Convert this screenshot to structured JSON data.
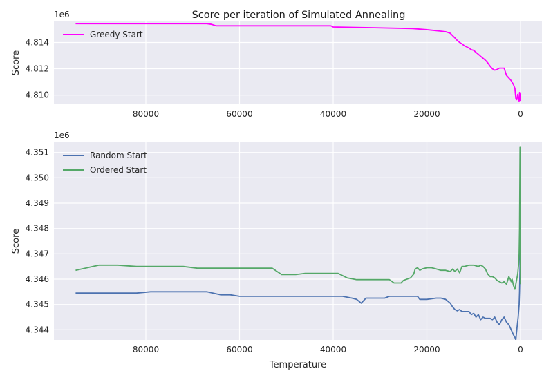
{
  "figure_title": "Score per iteration of Simulated Annealing",
  "colors": {
    "axes_bg": "#eaeaf2",
    "grid": "#ffffff",
    "greedy": "#ff00ff",
    "random": "#4c72b0",
    "ordered": "#55a868"
  },
  "chart_data": [
    {
      "type": "line",
      "x_inverted": true,
      "xlim": [
        0,
        100000
      ],
      "ylim": [
        4.8093,
        4.8156
      ],
      "y_offset_label": "1e6",
      "y_ticks": [
        4.81,
        4.812,
        4.814
      ],
      "y_tick_labels": [
        "4.810",
        "4.812",
        "4.814"
      ],
      "x_ticks": [
        80000,
        60000,
        40000,
        20000,
        0
      ],
      "x_tick_labels": [
        "80000",
        "60000",
        "40000",
        "20000",
        "0"
      ],
      "xlabel": "",
      "ylabel": "Score",
      "grid": true,
      "legend_loc": "upper left",
      "series": [
        {
          "name": "Greedy Start",
          "color_key": "greedy",
          "x": [
            95000,
            67000,
            66000,
            65000,
            40500,
            40000,
            32000,
            23000,
            20200,
            18000,
            16000,
            15000,
            14500,
            14000,
            13500,
            13000,
            12500,
            12000,
            11000,
            10500,
            10000,
            9500,
            9000,
            8500,
            8000,
            7500,
            7000,
            6500,
            6000,
            5500,
            5000,
            4500,
            4000,
            3500,
            3000,
            2500,
            2000,
            1500,
            1200,
            1000,
            800,
            600,
            400,
            300,
            200,
            100,
            50,
            0
          ],
          "y": [
            4.81543,
            4.81543,
            4.81538,
            4.81527,
            4.81527,
            4.81518,
            4.81513,
            4.81506,
            4.81498,
            4.8149,
            4.81482,
            4.8147,
            4.81452,
            4.81435,
            4.81415,
            4.814,
            4.8139,
            4.81375,
            4.81358,
            4.81345,
            4.8134,
            4.81325,
            4.8131,
            4.81295,
            4.8128,
            4.81265,
            4.81245,
            4.8122,
            4.812,
            4.8119,
            4.81195,
            4.81205,
            4.81205,
            4.81205,
            4.8115,
            4.8113,
            4.8111,
            4.8108,
            4.8105,
            4.80975,
            4.80965,
            4.81005,
            4.8096,
            4.80955,
            4.8102,
            4.81005,
            4.8096,
            4.80965
          ]
        }
      ]
    },
    {
      "type": "line",
      "x_inverted": true,
      "xlim": [
        0,
        100000
      ],
      "ylim": [
        4.3436,
        4.3514
      ],
      "y_offset_label": "1e6",
      "y_ticks": [
        4.344,
        4.345,
        4.346,
        4.347,
        4.348,
        4.349,
        4.35,
        4.351
      ],
      "y_tick_labels": [
        "4.344",
        "4.345",
        "4.346",
        "4.347",
        "4.348",
        "4.349",
        "4.350",
        "4.351"
      ],
      "x_ticks": [
        80000,
        60000,
        40000,
        20000,
        0
      ],
      "x_tick_labels": [
        "80000",
        "60000",
        "40000",
        "20000",
        "0"
      ],
      "xlabel": "Temperature",
      "ylabel": "Score",
      "grid": true,
      "legend_loc": "upper left",
      "series": [
        {
          "name": "Random Start",
          "color_key": "random",
          "x": [
            95000,
            82000,
            79000,
            67000,
            64000,
            62000,
            60000,
            38000,
            36000,
            35000,
            34000,
            33000,
            29000,
            28000,
            22000,
            21500,
            20000,
            18000,
            17000,
            16000,
            15000,
            14500,
            14000,
            13500,
            13000,
            12500,
            12000,
            11000,
            10500,
            10000,
            9500,
            9000,
            8500,
            8000,
            7500,
            7000,
            6500,
            6000,
            5500,
            5000,
            4500,
            4000,
            3500,
            3000,
            2500,
            2000,
            1500,
            1200,
            1000,
            800,
            500,
            300,
            200,
            100,
            50,
            0
          ],
          "y": [
            4.34545,
            4.34545,
            4.3455,
            4.3455,
            4.34538,
            4.34538,
            4.34532,
            4.34532,
            4.34525,
            4.3452,
            4.34505,
            4.34525,
            4.34525,
            4.34532,
            4.34532,
            4.3452,
            4.3452,
            4.34525,
            4.34525,
            4.3452,
            4.34505,
            4.3449,
            4.3448,
            4.34475,
            4.3448,
            4.34472,
            4.34472,
            4.34472,
            4.3446,
            4.34465,
            4.3445,
            4.3446,
            4.3444,
            4.3445,
            4.34445,
            4.34445,
            4.34445,
            4.3444,
            4.3445,
            4.3443,
            4.3442,
            4.3444,
            4.3445,
            4.3443,
            4.3442,
            4.344,
            4.3438,
            4.3437,
            4.3436,
            4.344,
            4.3445,
            4.345,
            4.3455,
            4.3465,
            4.349,
            4.347
          ]
        },
        {
          "name": "Ordered Start",
          "color_key": "ordered",
          "x": [
            95000,
            90000,
            86000,
            82000,
            72000,
            69000,
            53000,
            51000,
            48000,
            46000,
            39000,
            37000,
            35000,
            28000,
            27000,
            25500,
            25000,
            23500,
            22800,
            22500,
            22000,
            21500,
            21000,
            20000,
            19000,
            18000,
            17000,
            16000,
            15000,
            14500,
            14000,
            13500,
            13000,
            12500,
            12000,
            11000,
            10000,
            9000,
            8500,
            8000,
            7500,
            7000,
            6500,
            6000,
            5500,
            5000,
            4500,
            4000,
            3500,
            3000,
            2500,
            2200,
            2000,
            1800,
            1500,
            1200,
            1000,
            800,
            600,
            400,
            300,
            200,
            100,
            50,
            0
          ],
          "y": [
            4.34635,
            4.34655,
            4.34655,
            4.3465,
            4.3465,
            4.34643,
            4.34643,
            4.34618,
            4.34618,
            4.34623,
            4.34623,
            4.34605,
            4.34598,
            4.34598,
            4.34585,
            4.34585,
            4.34595,
            4.34605,
            4.3462,
            4.3464,
            4.34645,
            4.34635,
            4.3464,
            4.34645,
            4.34645,
            4.3464,
            4.34635,
            4.34635,
            4.3463,
            4.3464,
            4.3463,
            4.3464,
            4.34625,
            4.3465,
            4.3465,
            4.34655,
            4.34655,
            4.3465,
            4.34655,
            4.3465,
            4.3464,
            4.3462,
            4.3461,
            4.3461,
            4.34605,
            4.34595,
            4.3459,
            4.34585,
            4.3459,
            4.3458,
            4.3461,
            4.346,
            4.3459,
            4.346,
            4.34575,
            4.3456,
            4.3458,
            4.346,
            4.3462,
            4.3466,
            4.347,
            4.348,
            4.3512,
            4.348,
            4.3458
          ]
        }
      ]
    }
  ]
}
